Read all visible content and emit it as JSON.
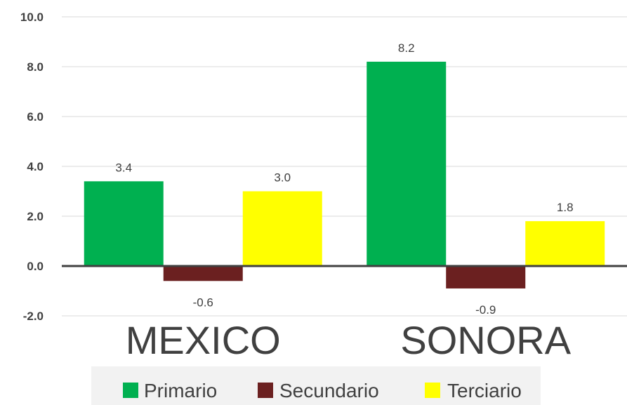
{
  "chart_data": {
    "type": "bar",
    "categories": [
      "MEXICO",
      "SONORA"
    ],
    "series": [
      {
        "name": "Primario",
        "values": [
          3.4,
          8.2
        ],
        "color": "#00B050"
      },
      {
        "name": "Secundario",
        "values": [
          -0.6,
          -0.9
        ],
        "color": "#6B2020"
      },
      {
        "name": "Terciario",
        "values": [
          3.0,
          1.8
        ],
        "color": "#FFFF00"
      }
    ],
    "value_labels": [
      [
        "3.4",
        "8.2"
      ],
      [
        "-0.6",
        "-0.9"
      ],
      [
        "3.0",
        "1.8"
      ]
    ],
    "yticks": [
      "10.0",
      "8.0",
      "6.0",
      "4.0",
      "2.0",
      "0.0",
      "-2.0"
    ],
    "ylim": [
      -2,
      10
    ],
    "grid": true,
    "legend_position": "bottom",
    "title": "",
    "xlabel": "",
    "ylabel": ""
  }
}
